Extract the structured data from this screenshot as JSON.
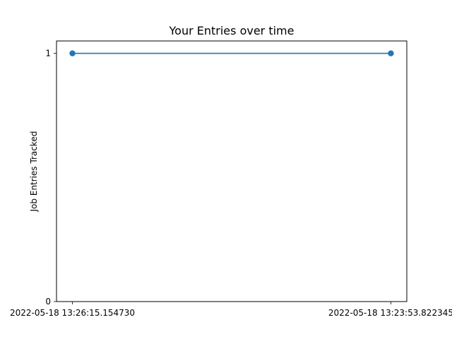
{
  "chart_data": {
    "type": "line",
    "title": "Your Entries over time",
    "xlabel": "",
    "ylabel": "Job Entries Tracked",
    "categories": [
      "2022-05-18 13:26:15.154730",
      "2022-05-18 13:23:53.822345"
    ],
    "series": [
      {
        "values": [
          1,
          1
        ],
        "color": "#1f77b4"
      }
    ],
    "y_ticks": [
      0,
      1
    ],
    "ylim": [
      0,
      1.05
    ],
    "grid": false,
    "legend": "none"
  }
}
